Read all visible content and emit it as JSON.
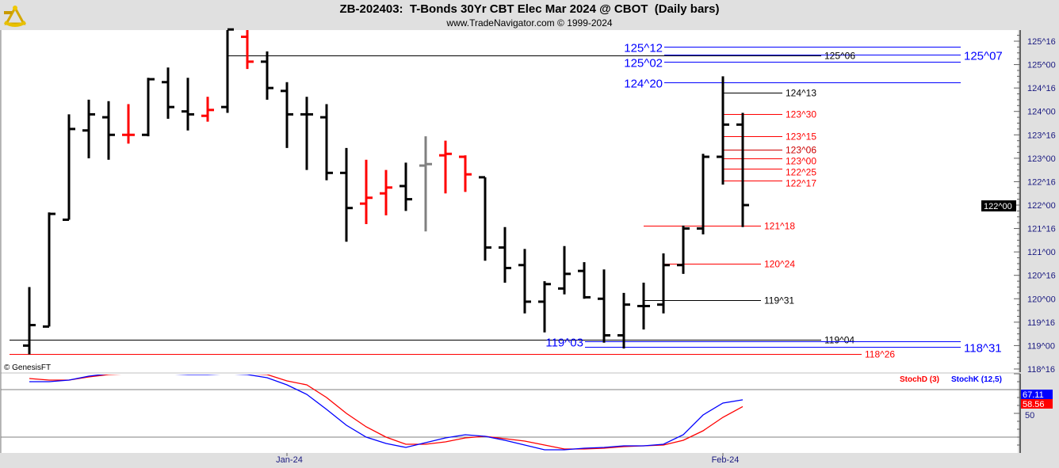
{
  "header": {
    "title": "ZB-202403:  T-Bonds 30Yr CBT Elec Mar 2024 @ CBOT  (Daily bars)",
    "subtitle": "www.TradeNavigator.com © 1999-2024",
    "logo_icon": "sextant-icon"
  },
  "copyright": "© GenesisFT",
  "current_price_label": "122^00",
  "colors": {
    "up_bar": "#000000",
    "red_bar": "#ff0000",
    "gray_bar": "#808080",
    "stoch_k": "#0000ff",
    "stoch_d": "#ff0000",
    "axis_text": "#1a1a80"
  },
  "chart_data": [
    {
      "type": "ohlc",
      "title": "ZB-202403:  T-Bonds 30Yr CBT Elec Mar 2024 @ CBOT  (Daily bars)",
      "price_format": "points^32nds",
      "ylim": [
        "118^16",
        "125^16"
      ],
      "y_ticks": [
        "125^16",
        "125^00",
        "124^16",
        "124^00",
        "123^16",
        "123^00",
        "122^16",
        "122^00",
        "121^16",
        "121^00",
        "120^16",
        "120^00",
        "119^16",
        "119^00",
        "118^16"
      ],
      "x_tick_labels": [
        {
          "label": "Jan-24",
          "date": "2024-01-02"
        },
        {
          "label": "Feb-24",
          "date": "2024-02-01"
        }
      ],
      "bars": [
        {
          "date": "2023-12-12",
          "o": "119^00",
          "h": "120^08",
          "l": "118^26",
          "c": "119^14",
          "color": "black"
        },
        {
          "date": "2023-12-13",
          "o": "119^13",
          "h": "121^27",
          "l": "119^13",
          "c": "121^26",
          "color": "black"
        },
        {
          "date": "2023-12-14",
          "o": "121^22",
          "h": "123^30",
          "l": "121^22",
          "c": "123^20",
          "color": "black"
        },
        {
          "date": "2023-12-15",
          "o": "123^19",
          "h": "124^08",
          "l": "123^00",
          "c": "123^30",
          "color": "black"
        },
        {
          "date": "2023-12-18",
          "o": "123^28",
          "h": "124^07",
          "l": "122^31",
          "c": "123^16",
          "color": "black"
        },
        {
          "date": "2023-12-19",
          "o": "123^16",
          "h": "124^05",
          "l": "123^10",
          "c": "123^16",
          "color": "red"
        },
        {
          "date": "2023-12-20",
          "o": "123^16",
          "h": "124^23",
          "l": "123^15",
          "c": "124^22",
          "color": "black"
        },
        {
          "date": "2023-12-21",
          "o": "124^20",
          "h": "124^30",
          "l": "123^27",
          "c": "124^03",
          "color": "black"
        },
        {
          "date": "2023-12-22",
          "o": "124^00",
          "h": "124^23",
          "l": "123^19",
          "c": "123^30",
          "color": "black"
        },
        {
          "date": "2023-12-26",
          "o": "123^29",
          "h": "124^10",
          "l": "123^25",
          "c": "124^01",
          "color": "red"
        },
        {
          "date": "2023-12-27",
          "o": "124^03",
          "h": "125^24",
          "l": "123^31",
          "c": "125^24",
          "color": "black"
        },
        {
          "date": "2023-12-28",
          "o": "125^19",
          "h": "125^24",
          "l": "124^29",
          "c": "125^02",
          "color": "red"
        },
        {
          "date": "2023-12-29",
          "o": "125^02",
          "h": "125^09",
          "l": "124^08",
          "c": "124^16",
          "color": "black"
        },
        {
          "date": "2024-01-02",
          "o": "124^14",
          "h": "124^20",
          "l": "123^07",
          "c": "123^30",
          "color": "black"
        },
        {
          "date": "2024-01-03",
          "o": "123^30",
          "h": "124^10",
          "l": "122^24",
          "c": "123^30",
          "color": "black"
        },
        {
          "date": "2024-01-04",
          "o": "123^28",
          "h": "124^05",
          "l": "122^17",
          "c": "122^22",
          "color": "black"
        },
        {
          "date": "2024-01-05",
          "o": "122^22",
          "h": "123^07",
          "l": "121^07",
          "c": "121^30",
          "color": "black"
        },
        {
          "date": "2024-01-08",
          "o": "122^01",
          "h": "122^31",
          "l": "121^19",
          "c": "122^05",
          "color": "red"
        },
        {
          "date": "2024-01-09",
          "o": "122^08",
          "h": "122^24",
          "l": "121^25",
          "c": "122^12",
          "color": "red"
        },
        {
          "date": "2024-01-10",
          "o": "122^13",
          "h": "122^29",
          "l": "121^28",
          "c": "122^04",
          "color": "black"
        },
        {
          "date": "2024-01-11",
          "o": "122^27",
          "h": "123^15",
          "l": "121^14",
          "c": "122^28",
          "color": "gray"
        },
        {
          "date": "2024-01-12",
          "o": "123^02",
          "h": "123^12",
          "l": "122^08",
          "c": "123^03",
          "color": "red"
        },
        {
          "date": "2024-01-15",
          "o": "123^01",
          "h": "123^02",
          "l": "122^09",
          "c": "122^21",
          "color": "red"
        },
        {
          "date": "2024-01-16",
          "o": "122^19",
          "h": "122^19",
          "l": "120^26",
          "c": "121^03",
          "color": "black"
        },
        {
          "date": "2024-01-17",
          "o": "121^03",
          "h": "121^17",
          "l": "120^11",
          "c": "120^21",
          "color": "black"
        },
        {
          "date": "2024-01-18",
          "o": "120^23",
          "h": "121^02",
          "l": "119^22",
          "c": "119^30",
          "color": "black"
        },
        {
          "date": "2024-01-19",
          "o": "119^30",
          "h": "120^12",
          "l": "119^09",
          "c": "120^10",
          "color": "black"
        },
        {
          "date": "2024-01-22",
          "o": "120^07",
          "h": "121^04",
          "l": "120^03",
          "c": "120^17",
          "color": "black"
        },
        {
          "date": "2024-01-23",
          "o": "120^19",
          "h": "120^25",
          "l": "120^00",
          "c": "120^01",
          "color": "black"
        },
        {
          "date": "2024-01-24",
          "o": "120^00",
          "h": "120^20",
          "l": "119^02",
          "c": "119^07",
          "color": "black"
        },
        {
          "date": "2024-01-25",
          "o": "119^07",
          "h": "120^04",
          "l": "118^30",
          "c": "119^28",
          "color": "black"
        },
        {
          "date": "2024-01-26",
          "o": "119^27",
          "h": "120^11",
          "l": "119^11",
          "c": "119^27",
          "color": "black"
        },
        {
          "date": "2024-01-29",
          "o": "119^28",
          "h": "120^31",
          "l": "119^22",
          "c": "120^23",
          "color": "black"
        },
        {
          "date": "2024-01-30",
          "o": "120^23",
          "h": "121^18",
          "l": "120^17",
          "c": "121^16",
          "color": "black"
        },
        {
          "date": "2024-01-31",
          "o": "121^16",
          "h": "123^03",
          "l": "121^12",
          "c": "123^01",
          "color": "black"
        },
        {
          "date": "2024-02-01",
          "o": "123^01",
          "h": "124^24",
          "l": "122^14",
          "c": "123^23",
          "color": "black"
        },
        {
          "date": "2024-02-02",
          "o": "123^23",
          "h": "123^31",
          "l": "121^17",
          "c": "122^00",
          "color": "black"
        }
      ],
      "levels": [
        {
          "label": "125^12",
          "color": "#0000ff",
          "label_side": "left"
        },
        {
          "label": "125^07",
          "color": "#0000ff",
          "label_side": "right"
        },
        {
          "label": "125^06",
          "color": "#000000",
          "label_side": "right"
        },
        {
          "label": "125^02",
          "color": "#0000ff",
          "label_side": "left"
        },
        {
          "label": "124^20",
          "color": "#0000ff",
          "label_side": "left"
        },
        {
          "label": "124^13",
          "color": "#000000",
          "label_side": "right"
        },
        {
          "label": "123^30",
          "color": "#ff0000",
          "label_side": "right"
        },
        {
          "label": "123^15",
          "color": "#ff0000",
          "label_side": "right"
        },
        {
          "label": "123^06",
          "color": "#cc0000",
          "label_side": "right"
        },
        {
          "label": "123^00",
          "color": "#ff0000",
          "label_side": "right"
        },
        {
          "label": "122^25",
          "color": "#ff0000",
          "label_side": "right"
        },
        {
          "label": "122^17",
          "color": "#ff0000",
          "label_side": "right"
        },
        {
          "label": "121^18",
          "color": "#ff0000",
          "label_side": "right"
        },
        {
          "label": "120^24",
          "color": "#ff0000",
          "label_side": "right"
        },
        {
          "label": "119^31",
          "color": "#000000",
          "label_side": "right"
        },
        {
          "label": "119^04",
          "color": "#000000",
          "label_side": "right"
        },
        {
          "label": "119^03",
          "color": "#0000ff",
          "label_side": "left"
        },
        {
          "label": "118^31",
          "color": "#0000ff",
          "label_side": "right"
        },
        {
          "label": "118^26",
          "color": "#ff0000",
          "label_side": "right"
        }
      ]
    },
    {
      "type": "line",
      "ylim": [
        0,
        100
      ],
      "y_ticks": [
        50
      ],
      "grid_lines": [
        80,
        20
      ],
      "series": [
        {
          "name": "StochD (3)",
          "color": "#ff0000",
          "last_value": "58.56",
          "values": [
            94,
            92,
            92,
            96,
            99,
            100,
            100,
            100,
            100,
            100,
            100,
            100,
            99,
            91,
            86,
            70,
            50,
            33,
            20,
            11,
            11,
            14,
            19,
            21,
            18,
            15,
            10,
            5,
            5,
            6,
            8,
            9,
            10,
            16,
            28,
            45,
            58.56
          ]
        },
        {
          "name": "StochK (12,5)",
          "color": "#0000ff",
          "last_value": "67.11",
          "values": [
            90,
            90,
            92,
            97,
            100,
            100,
            100,
            100,
            99,
            99,
            100,
            99,
            95,
            86,
            74,
            55,
            35,
            20,
            12,
            7,
            13,
            19,
            23,
            21,
            16,
            10,
            4,
            4,
            6,
            7,
            9,
            9,
            11,
            23,
            48,
            63,
            67.11
          ]
        }
      ]
    }
  ]
}
